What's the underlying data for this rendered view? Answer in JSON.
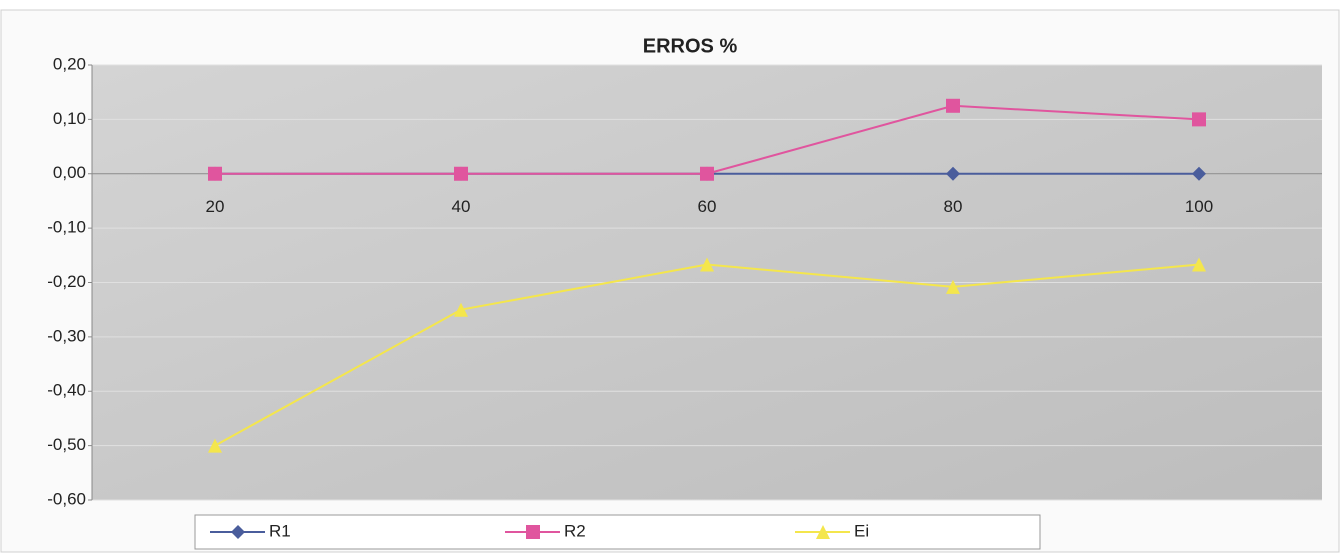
{
  "chart_data": {
    "type": "line",
    "title": "ERROS %",
    "categories": [
      "20",
      "40",
      "60",
      "80",
      "100"
    ],
    "series": [
      {
        "name": "R1",
        "color": "#4a5d9c",
        "marker": "diamond",
        "values": [
          0,
          0,
          0,
          0,
          0
        ]
      },
      {
        "name": "R2",
        "color": "#e0559e",
        "marker": "square",
        "values": [
          0,
          0,
          0,
          0.125,
          0.1
        ]
      },
      {
        "name": "Ei",
        "color": "#f4e64c",
        "marker": "triangle",
        "values": [
          -0.5,
          -0.25,
          -0.167,
          -0.208,
          -0.167
        ]
      }
    ],
    "ylim": [
      -0.6,
      0.2
    ],
    "yticks": [
      {
        "value": -0.6,
        "label": "-0,60"
      },
      {
        "value": -0.5,
        "label": "-0,50"
      },
      {
        "value": -0.4,
        "label": "-0,40"
      },
      {
        "value": -0.3,
        "label": "-0,30"
      },
      {
        "value": -0.2,
        "label": "-0,20"
      },
      {
        "value": -0.1,
        "label": "-0,10"
      },
      {
        "value": 0,
        "label": "0,00"
      },
      {
        "value": 0.1,
        "label": "0,10"
      },
      {
        "value": 0.2,
        "label": "0,20"
      }
    ],
    "grid": true,
    "legend": "bottom"
  }
}
